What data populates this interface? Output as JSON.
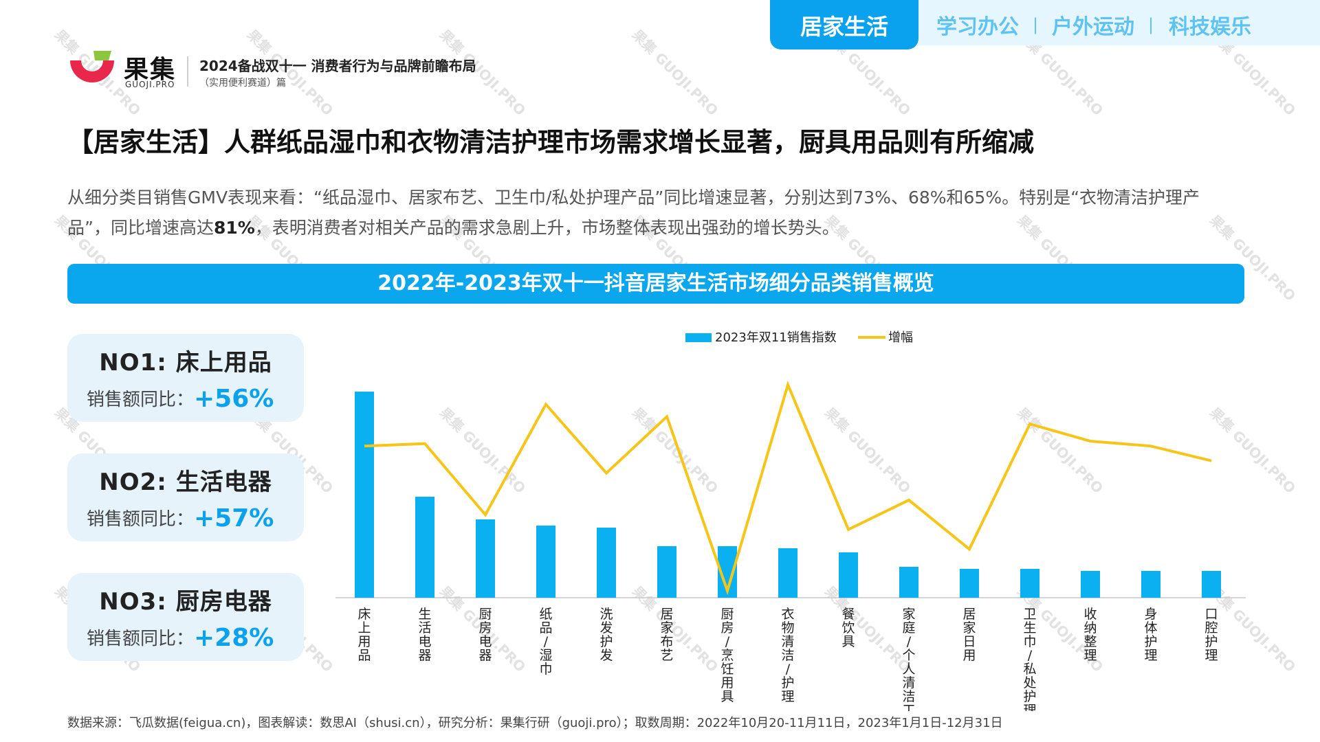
{
  "header": {
    "brand_cn": "果集",
    "brand_en": "GUOJI.PRO",
    "report_title": "2024备战双十一 消费者行为与品牌前瞻布局",
    "report_subtitle": "（实用便利赛道）篇"
  },
  "nav": {
    "active": "居家生活",
    "items": [
      "学习办公",
      "户外运动",
      "科技娱乐"
    ],
    "separator": "|"
  },
  "headline": "【居家生活】人群纸品湿巾和衣物清洁护理市场需求增长显著，厨具用品则有所缩减",
  "description": {
    "part1": "从细分类目销售GMV表现来看：“纸品湿巾、居家布艺、卫生巾/私处护理产品”同比增速显著，分别达到73%、68%和65%。特别是“衣物清洁护理产品”，同比增速高达",
    "bold": "81%",
    "part2": "，表明消费者对相关产品的需求急剧上升，市场整体表现出强劲的增长势头。"
  },
  "banner_title": "2022年-2023年双十一抖音居家生活市场细分品类销售概览",
  "cards": [
    {
      "title": "NO1:  床上用品",
      "label": "销售额同比：",
      "value": "+56%"
    },
    {
      "title": "NO2:  生活电器",
      "label": "销售额同比：",
      "value": "+57%"
    },
    {
      "title": "NO3:  厨房电器",
      "label": "销售额同比：",
      "value": "+28%"
    }
  ],
  "chart_data": {
    "type": "bar",
    "categories": [
      "床上用品",
      "生活电器",
      "厨房电器",
      "纸品/湿巾",
      "洗发护发",
      "居家布艺",
      "厨房/烹饪用具",
      "衣物清洁/护理",
      "餐饮具",
      "家庭/个人清洁工具",
      "居家日用",
      "卫生巾/私处护理",
      "收纳整理",
      "身体护理",
      "口腔护理"
    ],
    "series": [
      {
        "name": "2023年双11销售指数",
        "kind": "bar",
        "values": [
          100,
          49,
          38,
          35,
          34,
          25,
          25,
          24,
          22,
          15,
          14,
          14,
          13,
          13,
          13
        ]
      },
      {
        "name": "增幅",
        "kind": "line",
        "values": [
          56,
          57,
          28,
          73,
          45,
          68,
          -3,
          81,
          22,
          34,
          14,
          65,
          58,
          56,
          50
        ]
      }
    ],
    "legend_position": "top-center",
    "bar_color": "#0ab0f0",
    "line_color": "#f5c518",
    "axis_color": "#c8c8c8"
  },
  "source_note": "数据来源：飞瓜数据(feigua.cn)，图表解读：数思AI（shusi.cn），研究分析：果集行研（guoji.pro）；取数周期：2022年10月20-11月11日，2023年1月1日-12月31日",
  "watermark": "果集 GUOJI.PRO"
}
